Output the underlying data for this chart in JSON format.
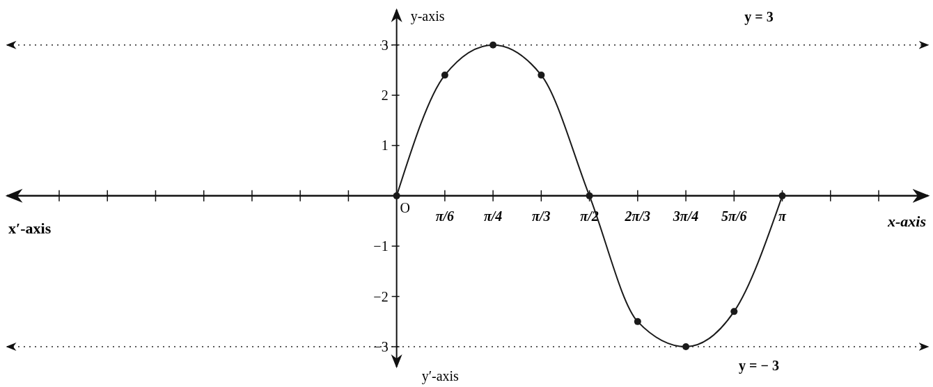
{
  "chart_data": {
    "type": "line",
    "categories": [
      null,
      null,
      null,
      null,
      null,
      null,
      null,
      "O",
      "π/6",
      "π/4",
      "π/3",
      "π/2",
      "2π/3",
      "3π/4",
      "5π/6",
      "π",
      null,
      null
    ],
    "values": [
      null,
      null,
      null,
      null,
      null,
      null,
      null,
      0,
      2.4,
      3,
      2.4,
      0,
      -2.5,
      -3,
      -2.3,
      0,
      null,
      null
    ],
    "color": "#1a1a1a",
    "marker": "circle",
    "line_style": "solid",
    "ylim": [
      -3.4,
      3.7
    ],
    "yticks": [
      {
        "value": -3,
        "label": "−3"
      },
      {
        "value": -2,
        "label": "−2"
      },
      {
        "value": -1,
        "label": "−1"
      },
      1,
      2,
      3
    ],
    "xlabel": "x-axis",
    "ylabel": "y-axis",
    "annotations": [
      "x′-axis",
      "y′-axis"
    ],
    "ref_lines": [
      {
        "axis": "y",
        "value": 3,
        "label": "y = 3",
        "line_style": "dotted"
      },
      {
        "axis": "y",
        "value": -3,
        "label": "y = − 3",
        "line_style": "dotted"
      }
    ]
  }
}
